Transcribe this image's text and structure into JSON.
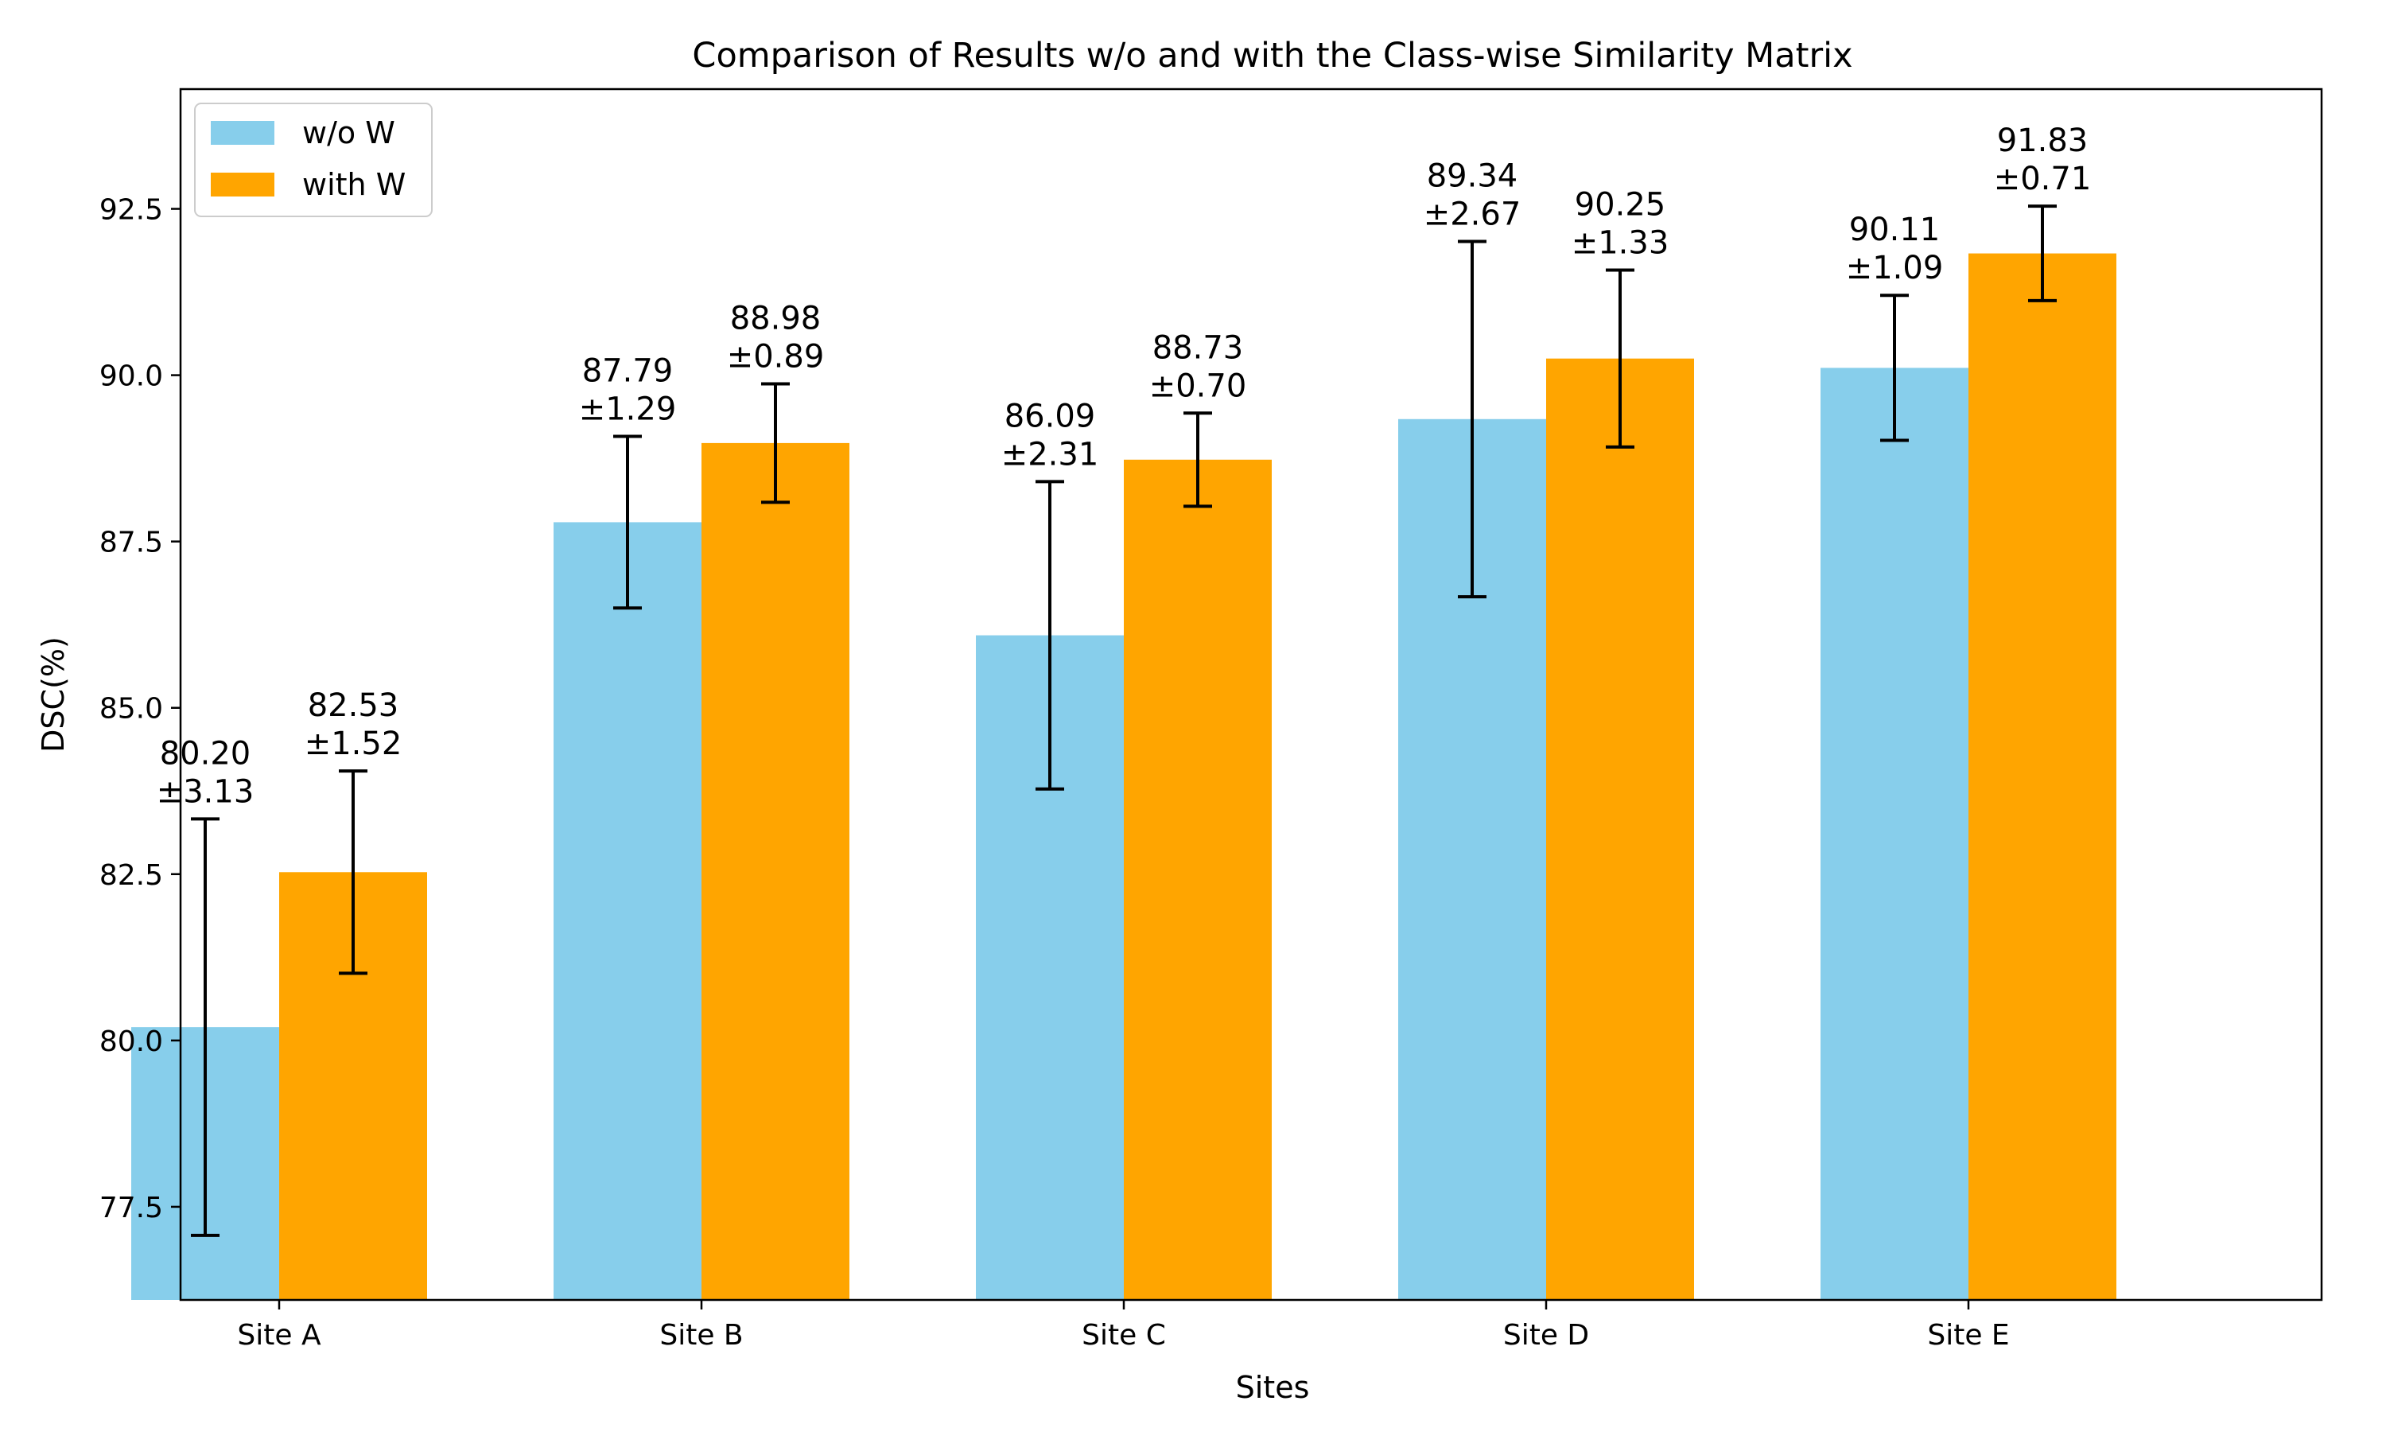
{
  "chart_data": {
    "type": "bar",
    "title": "Comparison of Results w/o and with the Class-wise Similarity Matrix",
    "xlabel": "Sites",
    "ylabel": "DSC(%)",
    "categories": [
      "Site A",
      "Site B",
      "Site C",
      "Site D",
      "Site E"
    ],
    "ylim": [
      76.1,
      94.3
    ],
    "yticks": [
      77.5,
      80.0,
      82.5,
      85.0,
      87.5,
      90.0,
      92.5
    ],
    "ytick_labels": [
      "77.5",
      "80.0",
      "82.5",
      "85.0",
      "87.5",
      "90.0",
      "92.5"
    ],
    "grid": false,
    "legend_position": "top-left",
    "series": [
      {
        "name": "w/o W",
        "color": "#87ceeb",
        "values": [
          80.2,
          87.79,
          86.09,
          89.34,
          90.11
        ],
        "errors": [
          3.13,
          1.29,
          2.31,
          2.67,
          1.09
        ],
        "labels": [
          [
            "80.20",
            "±3.13"
          ],
          [
            "87.79",
            "±1.29"
          ],
          [
            "86.09",
            "±2.31"
          ],
          [
            "89.34",
            "±2.67"
          ],
          [
            "90.11",
            "±1.09"
          ]
        ]
      },
      {
        "name": "with W",
        "color": "#ffa500",
        "values": [
          82.53,
          88.98,
          88.73,
          90.25,
          91.83
        ],
        "errors": [
          1.52,
          0.89,
          0.7,
          1.33,
          0.71
        ],
        "labels": [
          [
            "82.53",
            "±1.52"
          ],
          [
            "88.98",
            "±0.89"
          ],
          [
            "88.73",
            "±0.70"
          ],
          [
            "90.25",
            "±1.33"
          ],
          [
            "91.83",
            "±0.71"
          ]
        ]
      }
    ]
  }
}
